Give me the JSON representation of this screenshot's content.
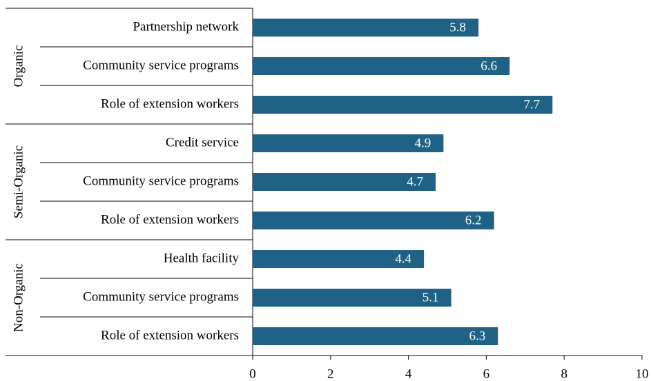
{
  "chart_data": {
    "type": "bar",
    "orientation": "horizontal",
    "color": "#1f6286",
    "groups": [
      {
        "name": "Organic",
        "categories": [
          "Partnership network",
          "Community service programs",
          "Role of extension workers"
        ],
        "values": [
          5.8,
          6.6,
          7.7
        ]
      },
      {
        "name": "Semi-Organic",
        "categories": [
          "Credit service",
          "Community service programs",
          "Role of extension workers"
        ],
        "values": [
          4.9,
          4.7,
          6.2
        ]
      },
      {
        "name": "Non-Organic",
        "categories": [
          "Health facility",
          "Community service programs",
          "Role of extension workers"
        ],
        "values": [
          4.4,
          5.1,
          6.3
        ]
      }
    ],
    "xlim": [
      0,
      10
    ],
    "xticks": [
      0,
      2,
      4,
      6,
      8,
      10
    ]
  }
}
